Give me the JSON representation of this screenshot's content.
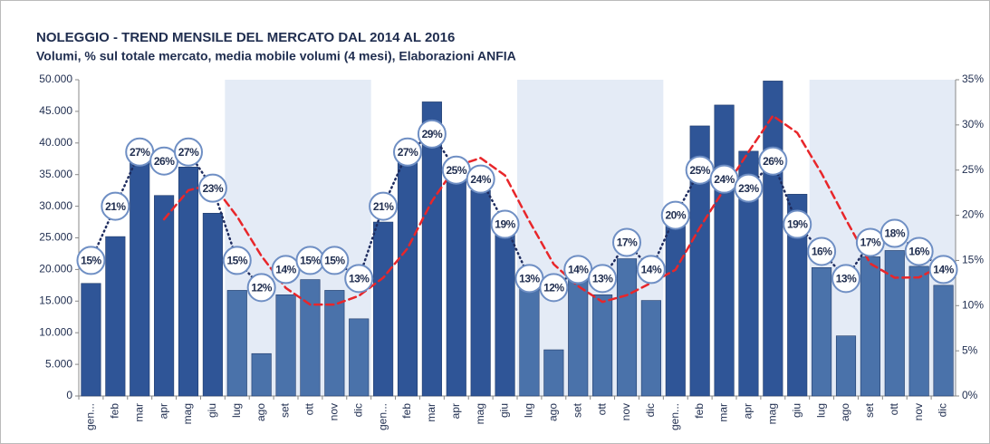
{
  "chart_data": {
    "type": "bar",
    "title": "NOLEGGIO - TREND MENSILE DEL MERCATO DAL 2014 AL 2016",
    "subtitle": "Volumi, % sul totale mercato, media mobile volumi (4 mesi), Elaborazioni ANFIA",
    "categories": [
      "gen...",
      "feb",
      "mar",
      "apr",
      "mag",
      "giu",
      "lug",
      "ago",
      "set",
      "ott",
      "nov",
      "dic",
      "gen...",
      "feb",
      "mar",
      "apr",
      "mag",
      "giu",
      "lug",
      "ago",
      "set",
      "ott",
      "nov",
      "dic",
      "gen...",
      "feb",
      "mar",
      "apr",
      "mag",
      "giu",
      "lug",
      "ago",
      "set",
      "ott",
      "nov",
      "dic"
    ],
    "ylim": [
      0,
      50000
    ],
    "yticks": [
      0,
      {
        "value": 5000,
        "label": "5.000"
      },
      {
        "value": 10000,
        "label": "10.000"
      },
      {
        "value": 15000,
        "label": "15.000"
      },
      {
        "value": 20000,
        "label": "20.000"
      },
      {
        "value": 25000,
        "label": "25.000"
      },
      {
        "value": 30000,
        "label": "30.000"
      },
      {
        "value": 35000,
        "label": "35.000"
      },
      {
        "value": 40000,
        "label": "40.000"
      },
      {
        "value": 45000,
        "label": "45.000"
      },
      {
        "value": 50000,
        "label": "50.000"
      }
    ],
    "y2lim": [
      0,
      35
    ],
    "y2ticks": [
      {
        "value": 0,
        "label": "0%"
      },
      {
        "value": 5,
        "label": "5%"
      },
      {
        "value": 10,
        "label": "10%"
      },
      {
        "value": 15,
        "label": "15%"
      },
      {
        "value": 20,
        "label": "20%"
      },
      {
        "value": 25,
        "label": "25%"
      },
      {
        "value": 30,
        "label": "30%"
      },
      {
        "value": 35,
        "label": "35%"
      }
    ],
    "series": [
      {
        "type": "bar",
        "color": "#2f5597",
        "shade_color": "#4a72aa",
        "values": [
          17800,
          25200,
          37000,
          31700,
          36200,
          28900,
          16700,
          6700,
          16000,
          18400,
          16700,
          12200,
          27500,
          37000,
          46500,
          34500,
          32500,
          26000,
          17500,
          7300,
          18700,
          16000,
          21700,
          15100,
          27000,
          42700,
          46000,
          38700,
          49800,
          31900,
          20300,
          9500,
          22000,
          23000,
          20500,
          17500
        ]
      },
      {
        "type": "line",
        "axis": "y2",
        "style": "dotted",
        "color": "#1f2d60",
        "values": [
          15,
          21,
          27,
          26,
          27,
          23,
          15,
          12,
          14,
          15,
          15,
          13,
          21,
          27,
          29,
          25,
          24,
          19,
          13,
          12,
          14,
          13,
          17,
          14,
          20,
          25,
          24,
          23,
          26,
          19,
          16,
          13,
          17,
          18,
          16,
          14
        ],
        "value_labels": [
          "15%",
          "21%",
          "27%",
          "26%",
          "27%",
          "23%",
          "15%",
          "12%",
          "14%",
          "15%",
          "15%",
          "13%",
          "21%",
          "27%",
          "29%",
          "25%",
          "24%",
          "19%",
          "13%",
          "12%",
          "14%",
          "13%",
          "17%",
          "14%",
          "20%",
          "25%",
          "24%",
          "23%",
          "26%",
          "19%",
          "16%",
          "13%",
          "17%",
          "18%",
          "16%",
          "14%"
        ]
      },
      {
        "type": "line",
        "style": "dashed",
        "color": "#e8262a",
        "values": [
          null,
          null,
          null,
          27925,
          32525,
          33450,
          28375,
          22125,
          17075,
          14450,
          14450,
          15825,
          18700,
          23350,
          30800,
          36375,
          37625,
          34875,
          27625,
          20825,
          17375,
          14875,
          15925,
          17875,
          19950,
          26625,
          32700,
          38600,
          44300,
          41600,
          35175,
          27875,
          20925,
          18700,
          18750,
          20750
        ]
      }
    ]
  }
}
